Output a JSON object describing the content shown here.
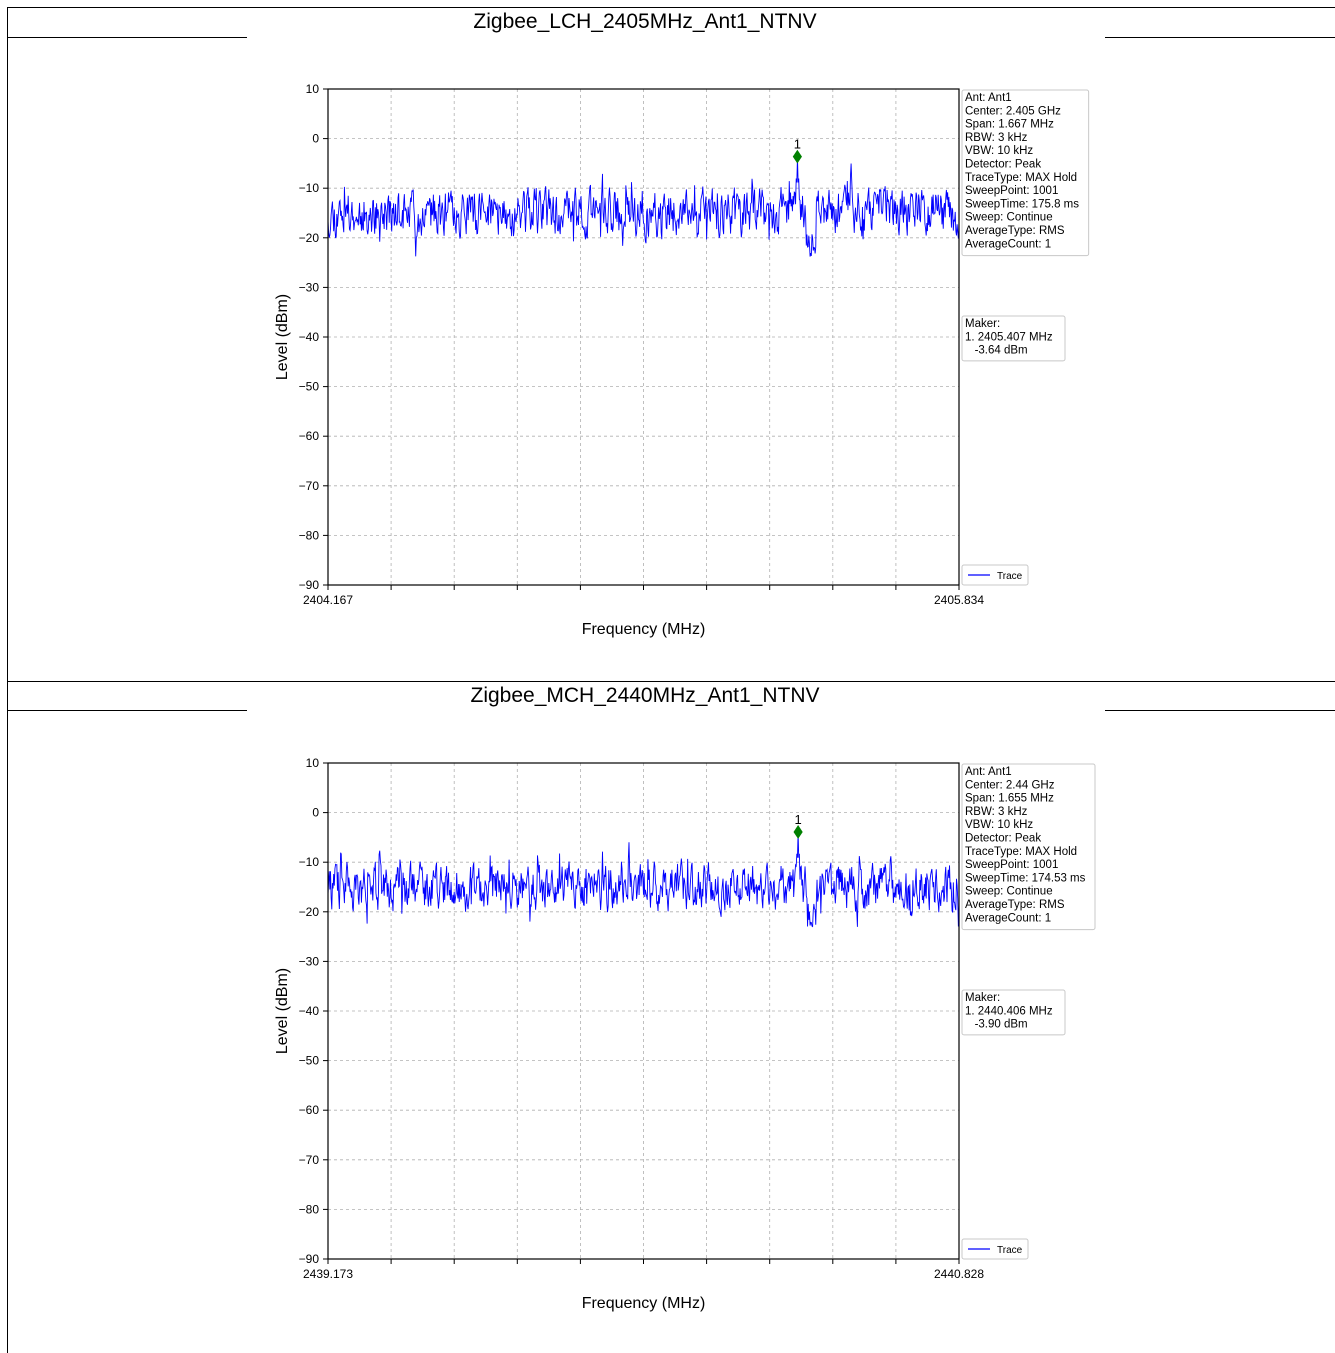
{
  "panels": [
    {
      "title": "Zigbee_LCH_2405MHz_Ant1_NTNV",
      "info": [
        "Ant: Ant1",
        "Center: 2.405 GHz",
        "Span: 1.667 MHz",
        "RBW: 3 kHz",
        "VBW: 10 kHz",
        "Detector: Peak",
        "TraceType: MAX Hold",
        "SweepPoint: 1001",
        "SweepTime: 175.8 ms",
        "Sweep: Continue",
        "AverageType: RMS",
        "AverageCount: 1"
      ],
      "maker": [
        "Maker:",
        "1. 2405.407 MHz",
        "   -3.64 dBm"
      ],
      "chart_data": {
        "type": "line",
        "xlabel": "Frequency (MHz)",
        "ylabel": "Level (dBm)",
        "xlim": [
          2404.167,
          2405.834
        ],
        "ylim": [
          -90,
          10
        ],
        "x_tick_labels": [
          "2404.167",
          "2405.834"
        ],
        "y_ticks": [
          10,
          0,
          -10,
          -20,
          -30,
          -40,
          -50,
          -60,
          -70,
          -80,
          -90
        ],
        "y_tick_labels": [
          "10",
          "0",
          "−10",
          "−20",
          "−30",
          "−40",
          "−50",
          "−60",
          "−70",
          "−80",
          "−90"
        ],
        "grid": true,
        "legend": "bottom-right",
        "series": [
          {
            "name": "Trace",
            "color": "#0000ff",
            "seed": 11
          }
        ],
        "marker": {
          "label": "1",
          "x": 2405.407,
          "y": -3.64,
          "color": "#008000"
        }
      }
    },
    {
      "title": "Zigbee_MCH_2440MHz_Ant1_NTNV",
      "info": [
        "Ant: Ant1",
        "Center: 2.44 GHz",
        "Span: 1.655 MHz",
        "RBW: 3 kHz",
        "VBW: 10 kHz",
        "Detector: Peak",
        "TraceType: MAX Hold",
        "SweepPoint: 1001",
        "SweepTime: 174.53 ms",
        "Sweep: Continue",
        "AverageType: RMS",
        "AverageCount: 1"
      ],
      "maker": [
        "Maker:",
        "1. 2440.406 MHz",
        "   -3.90 dBm"
      ],
      "chart_data": {
        "type": "line",
        "xlabel": "Frequency (MHz)",
        "ylabel": "Level (dBm)",
        "xlim": [
          2439.173,
          2440.828
        ],
        "ylim": [
          -90,
          10
        ],
        "x_tick_labels": [
          "2439.173",
          "2440.828"
        ],
        "y_ticks": [
          10,
          0,
          -10,
          -20,
          -30,
          -40,
          -50,
          -60,
          -70,
          -80,
          -90
        ],
        "y_tick_labels": [
          "10",
          "0",
          "−10",
          "−20",
          "−30",
          "−40",
          "−50",
          "−60",
          "−70",
          "−80",
          "−90"
        ],
        "grid": true,
        "legend": "bottom-right",
        "series": [
          {
            "name": "Trace",
            "color": "#0000ff",
            "seed": 29
          }
        ],
        "marker": {
          "label": "1",
          "x": 2440.406,
          "y": -3.9,
          "color": "#008000"
        }
      }
    }
  ]
}
